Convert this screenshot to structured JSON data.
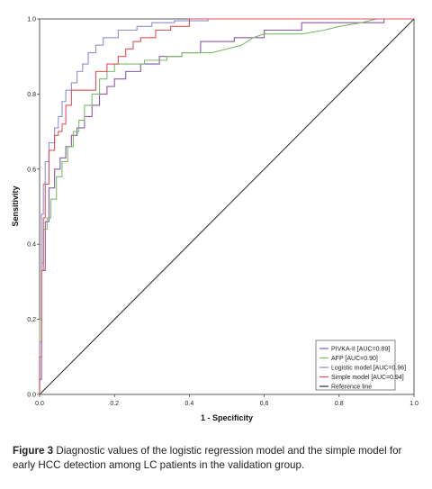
{
  "chart_data": {
    "type": "line",
    "xlabel": "1 - Specificity",
    "ylabel": "Sensitivity",
    "xlim": [
      0,
      1
    ],
    "ylim": [
      0,
      1
    ],
    "x_ticks": [
      "0.0",
      "0.2",
      "0.4",
      "0.6",
      "0.8",
      "1.0"
    ],
    "y_ticks": [
      "0.0",
      "0.2",
      "0.4",
      "0.6",
      "0.8",
      "1.0"
    ],
    "legend_position": "bottom-right",
    "series": [
      {
        "name": "PIVKA-II [AUC=0.89]",
        "color": "#8a5aa8",
        "points": [
          [
            0,
            0
          ],
          [
            0,
            0.04
          ],
          [
            0.005,
            0.04
          ],
          [
            0.005,
            0.33
          ],
          [
            0.015,
            0.33
          ],
          [
            0.015,
            0.46
          ],
          [
            0.025,
            0.46
          ],
          [
            0.025,
            0.55
          ],
          [
            0.04,
            0.55
          ],
          [
            0.04,
            0.6
          ],
          [
            0.055,
            0.6
          ],
          [
            0.055,
            0.63
          ],
          [
            0.07,
            0.63
          ],
          [
            0.07,
            0.66
          ],
          [
            0.085,
            0.66
          ],
          [
            0.085,
            0.69
          ],
          [
            0.1,
            0.69
          ],
          [
            0.1,
            0.71
          ],
          [
            0.12,
            0.71
          ],
          [
            0.12,
            0.74
          ],
          [
            0.14,
            0.74
          ],
          [
            0.14,
            0.77
          ],
          [
            0.16,
            0.77
          ],
          [
            0.16,
            0.8
          ],
          [
            0.18,
            0.8
          ],
          [
            0.18,
            0.82
          ],
          [
            0.2,
            0.82
          ],
          [
            0.2,
            0.84
          ],
          [
            0.23,
            0.84
          ],
          [
            0.23,
            0.86
          ],
          [
            0.27,
            0.86
          ],
          [
            0.27,
            0.88
          ],
          [
            0.32,
            0.88
          ],
          [
            0.32,
            0.9
          ],
          [
            0.38,
            0.9
          ],
          [
            0.38,
            0.91
          ],
          [
            0.43,
            0.91
          ],
          [
            0.43,
            0.94
          ],
          [
            0.52,
            0.94
          ],
          [
            0.52,
            0.95
          ],
          [
            0.6,
            0.95
          ],
          [
            0.6,
            0.97
          ],
          [
            0.7,
            0.97
          ],
          [
            0.7,
            0.99
          ],
          [
            0.82,
            0.99
          ],
          [
            0.92,
            0.99
          ],
          [
            0.92,
            1.0
          ],
          [
            1.0,
            1.0
          ]
        ]
      },
      {
        "name": "AFP [AUC=0.90]",
        "color": "#7cbb6b",
        "points": [
          [
            0,
            0
          ],
          [
            0,
            0.2
          ],
          [
            0.005,
            0.2
          ],
          [
            0.005,
            0.35
          ],
          [
            0.01,
            0.35
          ],
          [
            0.01,
            0.44
          ],
          [
            0.02,
            0.44
          ],
          [
            0.02,
            0.47
          ],
          [
            0.03,
            0.47
          ],
          [
            0.03,
            0.52
          ],
          [
            0.045,
            0.52
          ],
          [
            0.045,
            0.58
          ],
          [
            0.06,
            0.58
          ],
          [
            0.06,
            0.62
          ],
          [
            0.075,
            0.62
          ],
          [
            0.075,
            0.66
          ],
          [
            0.09,
            0.66
          ],
          [
            0.09,
            0.7
          ],
          [
            0.105,
            0.7
          ],
          [
            0.105,
            0.73
          ],
          [
            0.12,
            0.73
          ],
          [
            0.12,
            0.77
          ],
          [
            0.14,
            0.77
          ],
          [
            0.14,
            0.8
          ],
          [
            0.16,
            0.8
          ],
          [
            0.16,
            0.84
          ],
          [
            0.18,
            0.84
          ],
          [
            0.18,
            0.86
          ],
          [
            0.2,
            0.86
          ],
          [
            0.2,
            0.88
          ],
          [
            0.28,
            0.88
          ],
          [
            0.28,
            0.89
          ],
          [
            0.34,
            0.89
          ],
          [
            0.34,
            0.9
          ],
          [
            0.38,
            0.9
          ],
          [
            0.38,
            0.91
          ],
          [
            0.46,
            0.91
          ],
          [
            0.5,
            0.92
          ],
          [
            0.54,
            0.93
          ],
          [
            0.57,
            0.95
          ],
          [
            0.6,
            0.96
          ],
          [
            0.7,
            0.96
          ],
          [
            0.76,
            0.97
          ],
          [
            0.8,
            0.98
          ],
          [
            0.86,
            0.99
          ],
          [
            0.9,
            1.0
          ],
          [
            1.0,
            1.0
          ]
        ]
      },
      {
        "name": "Logistic model [AUC=0.96]",
        "color": "#8f8fd0",
        "points": [
          [
            0,
            0
          ],
          [
            0,
            0.14
          ],
          [
            0.005,
            0.14
          ],
          [
            0.005,
            0.48
          ],
          [
            0.01,
            0.48
          ],
          [
            0.01,
            0.56
          ],
          [
            0.015,
            0.56
          ],
          [
            0.015,
            0.62
          ],
          [
            0.025,
            0.62
          ],
          [
            0.025,
            0.67
          ],
          [
            0.04,
            0.67
          ],
          [
            0.04,
            0.71
          ],
          [
            0.05,
            0.71
          ],
          [
            0.05,
            0.74
          ],
          [
            0.06,
            0.74
          ],
          [
            0.06,
            0.78
          ],
          [
            0.07,
            0.78
          ],
          [
            0.07,
            0.81
          ],
          [
            0.085,
            0.81
          ],
          [
            0.085,
            0.83
          ],
          [
            0.1,
            0.83
          ],
          [
            0.1,
            0.86
          ],
          [
            0.115,
            0.86
          ],
          [
            0.115,
            0.88
          ],
          [
            0.13,
            0.88
          ],
          [
            0.13,
            0.91
          ],
          [
            0.15,
            0.91
          ],
          [
            0.15,
            0.93
          ],
          [
            0.17,
            0.93
          ],
          [
            0.17,
            0.95
          ],
          [
            0.21,
            0.95
          ],
          [
            0.21,
            0.97
          ],
          [
            0.26,
            0.97
          ],
          [
            0.26,
            0.98
          ],
          [
            0.3,
            0.98
          ],
          [
            0.3,
            0.99
          ],
          [
            0.36,
            0.99
          ],
          [
            0.36,
            0.995
          ],
          [
            0.45,
            0.995
          ],
          [
            0.45,
            1.0
          ],
          [
            1.0,
            1.0
          ]
        ]
      },
      {
        "name": "Simple model [AUC=0.94]",
        "color": "#e0505a",
        "points": [
          [
            0,
            0
          ],
          [
            0,
            0.1
          ],
          [
            0.005,
            0.1
          ],
          [
            0.005,
            0.33
          ],
          [
            0.01,
            0.33
          ],
          [
            0.01,
            0.47
          ],
          [
            0.015,
            0.47
          ],
          [
            0.015,
            0.56
          ],
          [
            0.025,
            0.56
          ],
          [
            0.025,
            0.65
          ],
          [
            0.04,
            0.65
          ],
          [
            0.04,
            0.69
          ],
          [
            0.05,
            0.69
          ],
          [
            0.05,
            0.7
          ],
          [
            0.06,
            0.7
          ],
          [
            0.06,
            0.72
          ],
          [
            0.07,
            0.72
          ],
          [
            0.07,
            0.77
          ],
          [
            0.085,
            0.77
          ],
          [
            0.085,
            0.81
          ],
          [
            0.15,
            0.81
          ],
          [
            0.15,
            0.86
          ],
          [
            0.18,
            0.86
          ],
          [
            0.18,
            0.88
          ],
          [
            0.21,
            0.88
          ],
          [
            0.21,
            0.9
          ],
          [
            0.23,
            0.9
          ],
          [
            0.23,
            0.92
          ],
          [
            0.25,
            0.92
          ],
          [
            0.25,
            0.94
          ],
          [
            0.27,
            0.94
          ],
          [
            0.27,
            0.95
          ],
          [
            0.31,
            0.95
          ],
          [
            0.31,
            0.97
          ],
          [
            0.35,
            0.97
          ],
          [
            0.35,
            0.98
          ],
          [
            0.4,
            0.98
          ],
          [
            0.4,
            1.0
          ],
          [
            1.0,
            1.0
          ]
        ]
      },
      {
        "name": "Reference line",
        "color": "#333333",
        "points": [
          [
            0,
            0
          ],
          [
            1,
            1
          ]
        ]
      }
    ]
  },
  "caption": {
    "label": "Figure 3",
    "text": "Diagnostic values of the logistic regression model and the simple model for early HCC detection among LC patients in the validation group."
  }
}
